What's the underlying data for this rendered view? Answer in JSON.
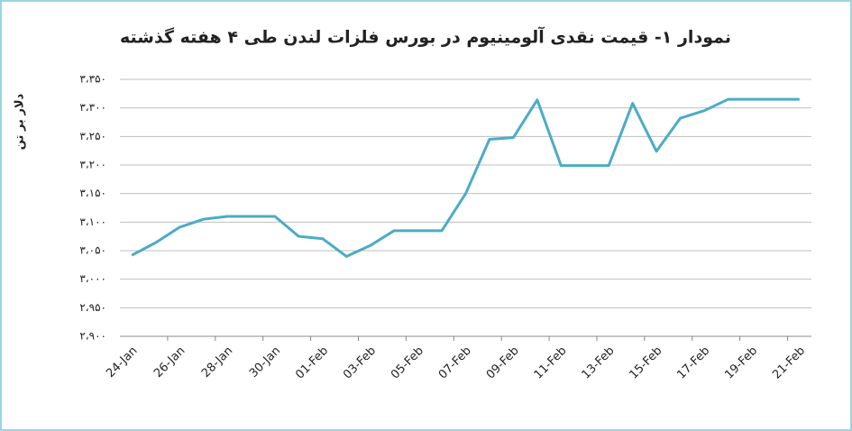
{
  "chart_data": {
    "type": "line",
    "title": "نمودار ۱- قیمت نقدی آلومینیوم در بورس فلزات لندن طی ۴ هفته گذشته",
    "y_label": "دلار بر تن",
    "categories": [
      "24-Jan",
      null,
      "26-Jan",
      null,
      "28-Jan",
      null,
      "30-Jan",
      null,
      "01-Feb",
      null,
      "03-Feb",
      null,
      "05-Feb",
      null,
      "07-Feb",
      null,
      "09-Feb",
      null,
      "11-Feb",
      null,
      "13-Feb",
      null,
      "15-Feb",
      null,
      "17-Feb",
      null,
      "19-Feb",
      null,
      "21-Feb"
    ],
    "values": [
      3042,
      3064,
      3091,
      3105,
      3110,
      3110,
      3110,
      3075,
      3071,
      3040,
      3059,
      3085,
      3085,
      3085,
      3150,
      3245,
      3248,
      3314,
      3199,
      3199,
      3199,
      3308,
      3224,
      3282,
      3295,
      3315,
      3315,
      3315,
      3315
    ],
    "color": "#4bacc6",
    "ylim": [
      2900,
      3350
    ],
    "yticks": [
      {
        "value": 2900,
        "label": "۲،۹۰۰"
      },
      {
        "value": 2950,
        "label": "۲،۹۵۰"
      },
      {
        "value": 3000,
        "label": "۳،۰۰۰"
      },
      {
        "value": 3050,
        "label": "۳،۰۵۰"
      },
      {
        "value": 3100,
        "label": "۳،۱۰۰"
      },
      {
        "value": 3150,
        "label": "۳،۱۵۰"
      },
      {
        "value": 3200,
        "label": "۳،۲۰۰"
      },
      {
        "value": 3250,
        "label": "۳،۲۵۰"
      },
      {
        "value": 3300,
        "label": "۳،۳۰۰"
      },
      {
        "value": 3350,
        "label": "۳،۳۵۰"
      }
    ],
    "grid": true
  }
}
